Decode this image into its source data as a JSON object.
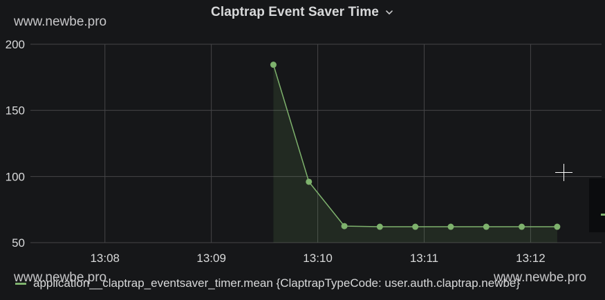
{
  "panel": {
    "title": "Claptrap Event Saver Time",
    "title_icon": "chevron-down-icon"
  },
  "watermarks": {
    "top": "www.newbe.pro",
    "bottom_left": "www.newbe.pro",
    "bottom_right": "www.newbe.pro"
  },
  "legend": {
    "label": "application__claptrap_eventsaver_timer.mean {ClaptrapTypeCode: user.auth.claptrap.newbe}"
  },
  "colors": {
    "background": "#161719",
    "grid": "#464648",
    "series": "#7eb26d",
    "text": "#d8d9da"
  },
  "chart_data": {
    "type": "line",
    "title": "Claptrap Event Saver Time",
    "xlabel": "",
    "ylabel": "",
    "x_ticks": [
      "13:08",
      "13:09",
      "13:10",
      "13:11",
      "13:12"
    ],
    "y_ticks": [
      50,
      100,
      150,
      200
    ],
    "xlim": [
      "13:07:18",
      "13:12:40"
    ],
    "ylim": [
      50,
      200
    ],
    "grid": true,
    "legend_position": "bottom-left",
    "series": [
      {
        "name": "application__claptrap_eventsaver_timer.mean {ClaptrapTypeCode: user.auth.claptrap.newbe}",
        "color": "#7eb26d",
        "fill": true,
        "points": [
          {
            "x": "13:09:35",
            "y": 184.5
          },
          {
            "x": "13:09:55",
            "y": 96.0
          },
          {
            "x": "13:10:15",
            "y": 62.5
          },
          {
            "x": "13:10:35",
            "y": 62.0
          },
          {
            "x": "13:10:55",
            "y": 62.0
          },
          {
            "x": "13:11:15",
            "y": 62.0
          },
          {
            "x": "13:11:35",
            "y": 62.0
          },
          {
            "x": "13:11:55",
            "y": 62.0
          },
          {
            "x": "13:12:15",
            "y": 62.0
          }
        ]
      }
    ]
  }
}
